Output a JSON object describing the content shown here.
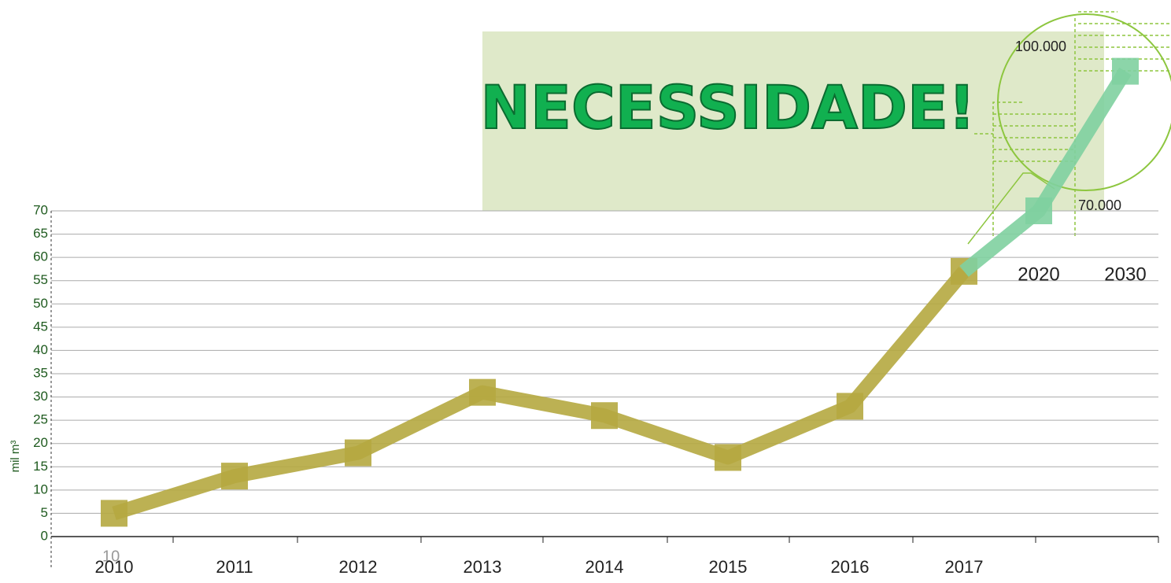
{
  "chart_data": {
    "type": "line",
    "annotation": "NECESSIDADE!",
    "stray_label": "10",
    "y_label": "mil m³",
    "categories": [
      "2010",
      "2011",
      "2012",
      "2013",
      "2014",
      "2015",
      "2016",
      "2017",
      "2020",
      "2030"
    ],
    "series": [
      {
        "color": "#b5a940",
        "values": [
          5,
          13,
          18,
          31,
          26,
          17,
          28,
          57,
          null,
          null
        ]
      },
      {
        "color": "#7fd0a0",
        "values": [
          null,
          null,
          null,
          null,
          null,
          null,
          null,
          57,
          70,
          100
        ],
        "value_labels": [
          null,
          null,
          null,
          null,
          null,
          null,
          null,
          null,
          "70.000",
          "100.000"
        ]
      }
    ],
    "ylim": [
      0,
      70
    ],
    "yticks": [
      0,
      5,
      10,
      15,
      20,
      25,
      30,
      35,
      40,
      45,
      50,
      55,
      60,
      65,
      70
    ],
    "grid": true
  }
}
